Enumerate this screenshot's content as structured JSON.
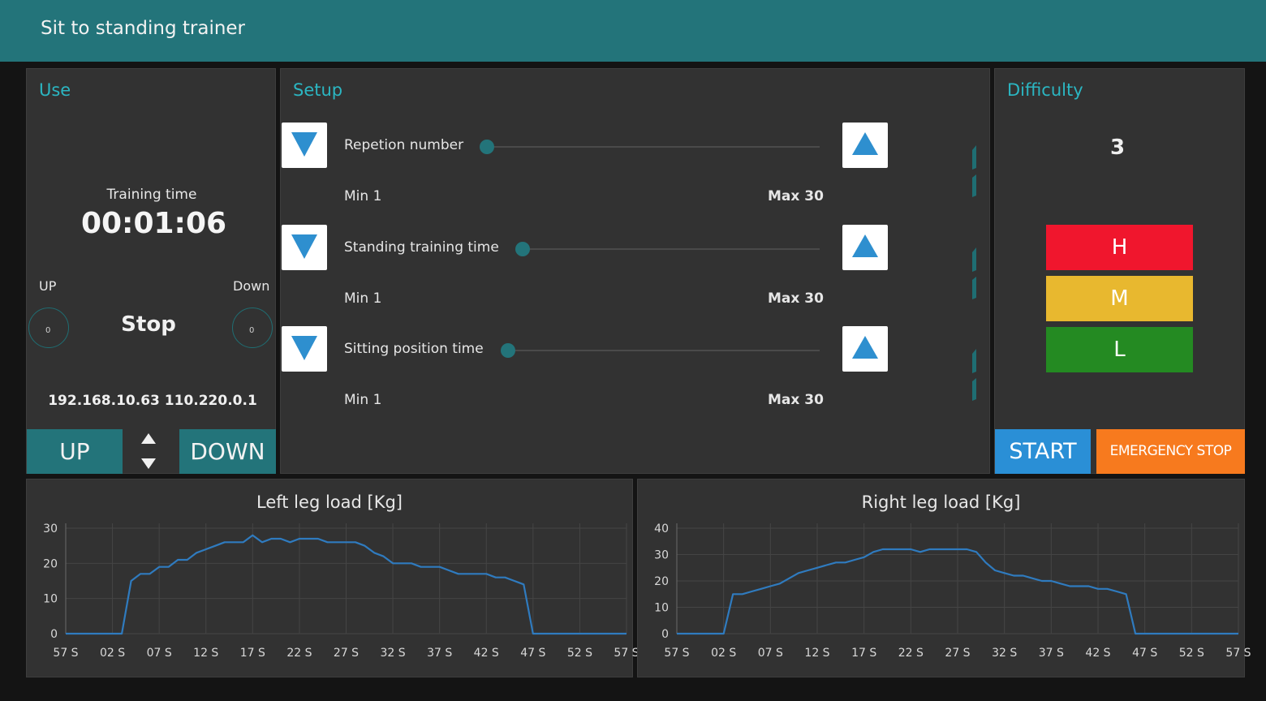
{
  "app": {
    "title": "Sit to standing trainer"
  },
  "use": {
    "title": "Use",
    "training_time_label": "Training time",
    "training_time_value": "00:01:06",
    "up_label": "UP",
    "down_label": "Down",
    "status": "Stop",
    "knob_value_left": "0",
    "knob_value_right": "0",
    "ip_text": "192.168.10.63 110.220.0.1",
    "up_button": "UP",
    "down_button": "DOWN"
  },
  "setup": {
    "title": "Setup",
    "rows": [
      {
        "label": "Repetion number",
        "min": "Min 1",
        "max": "Max 30"
      },
      {
        "label": "Standing training time",
        "min": "Min 1",
        "max": "Max 30"
      },
      {
        "label": "Sitting position time",
        "min": "Min 1",
        "max": "Max 30"
      }
    ]
  },
  "difficulty": {
    "title": "Difficulty",
    "value": "3",
    "levels": [
      {
        "label": "H",
        "color": "#f0162d"
      },
      {
        "label": "M",
        "color": "#e8b82f"
      },
      {
        "label": "L",
        "color": "#248a22"
      }
    ],
    "start_button": "START",
    "emergency_button": "EMERGENCY STOP",
    "start_color": "#2a8fd6",
    "emergency_color": "#f77a1e"
  },
  "chart_data": [
    {
      "type": "line",
      "title": "Left leg load [Kg]",
      "x_ticks": [
        "57 S",
        "02 S",
        "07 S",
        "12 S",
        "17 S",
        "22 S",
        "27 S",
        "32 S",
        "37 S",
        "42 S",
        "47 S",
        "52 S",
        "57 S"
      ],
      "ylim": [
        0,
        30
      ],
      "y_ticks": [
        0,
        10,
        20,
        30
      ],
      "grid": true,
      "line_color": "#2f7bbf",
      "series": [
        {
          "x": [
            0,
            1,
            2,
            3,
            4,
            5,
            6,
            7,
            8,
            9,
            10,
            11,
            12,
            13,
            14,
            15,
            16,
            17,
            18,
            19,
            20,
            21,
            22,
            23,
            24,
            25,
            26,
            27,
            28,
            29,
            30,
            31,
            32,
            33,
            34,
            35,
            36,
            37,
            38,
            39,
            40,
            41,
            42,
            43,
            44,
            45,
            46,
            47,
            48,
            49,
            50,
            51,
            52,
            53,
            54,
            55,
            56,
            57,
            58,
            59,
            60
          ],
          "y": [
            0,
            0,
            0,
            0,
            0,
            0,
            0,
            15,
            17,
            17,
            19,
            19,
            21,
            21,
            23,
            24,
            25,
            26,
            26,
            26,
            28,
            26,
            27,
            27,
            26,
            27,
            27,
            27,
            26,
            26,
            26,
            26,
            25,
            23,
            22,
            20,
            20,
            20,
            19,
            19,
            19,
            18,
            17,
            17,
            17,
            17,
            16,
            16,
            15,
            14,
            0,
            0,
            0,
            0,
            0,
            0,
            0,
            0,
            0,
            0,
            0
          ]
        }
      ]
    },
    {
      "type": "line",
      "title": "Right leg load [Kg]",
      "x_ticks": [
        "57 S",
        "02 S",
        "07 S",
        "12 S",
        "17 S",
        "22 S",
        "27 S",
        "32 S",
        "37 S",
        "42 S",
        "47 S",
        "52 S",
        "57 S"
      ],
      "ylim": [
        0,
        40
      ],
      "y_ticks": [
        0,
        10,
        20,
        30,
        40
      ],
      "grid": true,
      "line_color": "#2f7bbf",
      "series": [
        {
          "x": [
            0,
            1,
            2,
            3,
            4,
            5,
            6,
            7,
            8,
            9,
            10,
            11,
            12,
            13,
            14,
            15,
            16,
            17,
            18,
            19,
            20,
            21,
            22,
            23,
            24,
            25,
            26,
            27,
            28,
            29,
            30,
            31,
            32,
            33,
            34,
            35,
            36,
            37,
            38,
            39,
            40,
            41,
            42,
            43,
            44,
            45,
            46,
            47,
            48,
            49,
            50,
            51,
            52,
            53,
            54,
            55,
            56,
            57,
            58,
            59,
            60
          ],
          "y": [
            0,
            0,
            0,
            0,
            0,
            0,
            15,
            15,
            16,
            17,
            18,
            19,
            21,
            23,
            24,
            25,
            26,
            27,
            27,
            28,
            29,
            31,
            32,
            32,
            32,
            32,
            31,
            32,
            32,
            32,
            32,
            32,
            31,
            27,
            24,
            23,
            22,
            22,
            21,
            20,
            20,
            19,
            18,
            18,
            18,
            17,
            17,
            16,
            15,
            0,
            0,
            0,
            0,
            0,
            0,
            0,
            0,
            0,
            0,
            0,
            0
          ]
        }
      ]
    }
  ]
}
